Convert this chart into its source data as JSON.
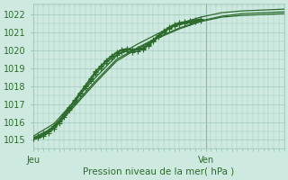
{
  "title": "Pression niveau de la mer( hPa )",
  "ylabel_ticks": [
    1015,
    1016,
    1017,
    1018,
    1019,
    1020,
    1021,
    1022
  ],
  "ylim": [
    1014.5,
    1022.6
  ],
  "xlim": [
    0,
    48
  ],
  "x_day_labels": [
    [
      "Jeu",
      0
    ],
    [
      "Ven",
      33
    ]
  ],
  "background_color": "#ceeae0",
  "grid_color": "#9ec8b8",
  "line_color": "#2d6b2d",
  "marker": "+",
  "markersize": 5,
  "linewidth": 0.9,
  "vline_x": 33,
  "vline_color": "#888888",
  "series_with_markers": [
    {
      "x": [
        0,
        1,
        2,
        3,
        4,
        5,
        6,
        7,
        8,
        9,
        10,
        11,
        12,
        13,
        14,
        15,
        16,
        17,
        18,
        19,
        20,
        21,
        22,
        23,
        24,
        25,
        26,
        27,
        28,
        29,
        30,
        31,
        32
      ],
      "y": [
        1015.1,
        1015.2,
        1015.35,
        1015.55,
        1015.8,
        1016.1,
        1016.45,
        1016.85,
        1017.25,
        1017.65,
        1018.05,
        1018.45,
        1018.85,
        1019.15,
        1019.45,
        1019.7,
        1019.9,
        1020.05,
        1020.1,
        1020.05,
        1020.1,
        1020.15,
        1020.35,
        1020.6,
        1020.85,
        1021.1,
        1021.3,
        1021.45,
        1021.55,
        1021.6,
        1021.65,
        1021.7,
        1021.75
      ]
    },
    {
      "x": [
        0,
        1,
        2,
        3,
        4,
        5,
        6,
        7,
        8,
        9,
        10,
        11,
        12,
        13,
        14,
        15,
        16,
        17,
        18,
        19,
        20,
        21,
        22,
        23,
        24,
        25,
        26,
        27,
        28,
        29,
        30,
        31,
        32
      ],
      "y": [
        1015.05,
        1015.1,
        1015.2,
        1015.4,
        1015.65,
        1015.95,
        1016.3,
        1016.7,
        1017.1,
        1017.5,
        1017.9,
        1018.3,
        1018.7,
        1019.0,
        1019.3,
        1019.55,
        1019.75,
        1019.9,
        1019.95,
        1019.9,
        1019.95,
        1020.05,
        1020.25,
        1020.5,
        1020.75,
        1021.0,
        1021.2,
        1021.35,
        1021.45,
        1021.5,
        1021.55,
        1021.6,
        1021.65
      ]
    },
    {
      "x": [
        0,
        1,
        2,
        3,
        4,
        5,
        6,
        7,
        8,
        9,
        10,
        11,
        12,
        13,
        14,
        15,
        16,
        17,
        18,
        19,
        20,
        21,
        22,
        23,
        24,
        25,
        26,
        27,
        28,
        29,
        30,
        31,
        32
      ],
      "y": [
        1015.05,
        1015.15,
        1015.3,
        1015.5,
        1015.75,
        1016.05,
        1016.4,
        1016.8,
        1017.2,
        1017.6,
        1018.0,
        1018.4,
        1018.8,
        1019.1,
        1019.4,
        1019.65,
        1019.85,
        1020.0,
        1020.05,
        1020.0,
        1020.05,
        1020.1,
        1020.3,
        1020.55,
        1020.8,
        1021.05,
        1021.25,
        1021.4,
        1021.5,
        1021.55,
        1021.6,
        1021.65,
        1021.7
      ]
    }
  ],
  "series_no_markers": [
    {
      "x": [
        0,
        4,
        8,
        12,
        16,
        20,
        24,
        28,
        32,
        36,
        40,
        44,
        48
      ],
      "y": [
        1015.0,
        1015.6,
        1016.9,
        1018.2,
        1019.4,
        1020.1,
        1020.7,
        1021.2,
        1021.6,
        1021.85,
        1021.95,
        1022.0,
        1022.05
      ]
    },
    {
      "x": [
        0,
        4,
        8,
        12,
        16,
        20,
        24,
        28,
        32,
        36,
        40,
        44,
        48
      ],
      "y": [
        1015.1,
        1015.7,
        1017.0,
        1018.3,
        1019.5,
        1020.15,
        1020.75,
        1021.25,
        1021.65,
        1021.9,
        1022.05,
        1022.1,
        1022.15
      ]
    },
    {
      "x": [
        0,
        4,
        8,
        12,
        16,
        20,
        24,
        28,
        32,
        36,
        40,
        44,
        48
      ],
      "y": [
        1015.2,
        1015.9,
        1017.2,
        1018.5,
        1019.7,
        1020.35,
        1020.95,
        1021.5,
        1021.85,
        1022.1,
        1022.2,
        1022.25,
        1022.3
      ]
    }
  ]
}
